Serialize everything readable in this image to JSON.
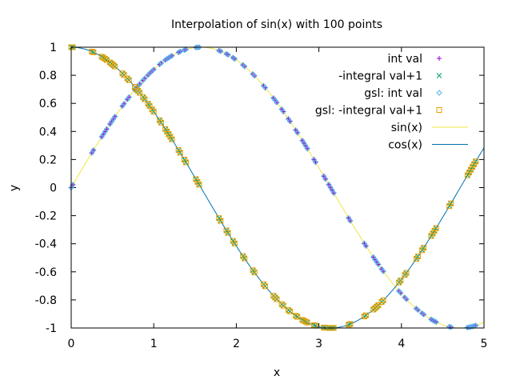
{
  "chart_data": {
    "type": "line",
    "title": "Interpolation of sin(x) with 100 points",
    "xlabel": "x",
    "ylabel": "y",
    "xlim": [
      0,
      5
    ],
    "ylim": [
      -1,
      1
    ],
    "grid": false,
    "legend_position": "top-right",
    "x_ticks": [
      "0",
      "1",
      "2",
      "3",
      "4",
      "5"
    ],
    "y_ticks": [
      "1",
      "0.8",
      "0.6",
      "0.4",
      "0.2",
      "0",
      "-0.2",
      "-0.4",
      "-0.6",
      "-0.8",
      "-1"
    ],
    "sample_x": [
      0.0,
      0.02,
      0.25,
      0.27,
      0.37,
      0.39,
      0.41,
      0.43,
      0.47,
      0.49,
      0.51,
      0.53,
      0.62,
      0.64,
      0.68,
      0.7,
      0.77,
      0.79,
      0.81,
      0.83,
      0.87,
      0.89,
      0.93,
      0.95,
      0.98,
      1.0,
      1.07,
      1.09,
      1.14,
      1.16,
      1.18,
      1.2,
      1.22,
      1.3,
      1.32,
      1.37,
      1.39,
      1.51,
      1.53,
      1.55,
      1.79,
      1.81,
      1.88,
      1.9,
      1.96,
      1.98,
      2.08,
      2.1,
      2.2,
      2.22,
      2.33,
      2.35,
      2.45,
      2.47,
      2.49,
      2.55,
      2.57,
      2.63,
      2.65,
      2.72,
      2.74,
      2.8,
      2.82,
      2.84,
      2.86,
      2.94,
      2.96,
      3.06,
      3.08,
      3.12,
      3.14,
      3.16,
      3.18,
      3.36,
      3.38,
      3.55,
      3.57,
      3.66,
      3.68,
      3.7,
      3.72,
      3.76,
      3.78,
      3.97,
      3.99,
      4.04,
      4.06,
      4.18,
      4.2,
      4.25,
      4.27,
      4.36,
      4.38,
      4.4,
      4.42,
      4.58,
      4.6,
      4.8,
      4.82,
      4.84,
      4.86,
      4.88,
      4.9
    ],
    "series": [
      {
        "name": "int val",
        "marker": "plus",
        "color": "#9400d3",
        "function": "sin"
      },
      {
        "name": "-integral val+1",
        "marker": "x",
        "color": "#009e73",
        "function": "cos"
      },
      {
        "name": "gsl: int val",
        "marker": "diamond",
        "color": "#56b4e9",
        "function": "sin"
      },
      {
        "name": "gsl: -integral val+1",
        "marker": "square",
        "color": "#e69f00",
        "function": "cos"
      },
      {
        "name": "sin(x)",
        "marker": "line",
        "color": "#f0e442",
        "function": "sin"
      },
      {
        "name": "cos(x)",
        "marker": "line",
        "color": "#0072b2",
        "function": "cos"
      }
    ]
  }
}
